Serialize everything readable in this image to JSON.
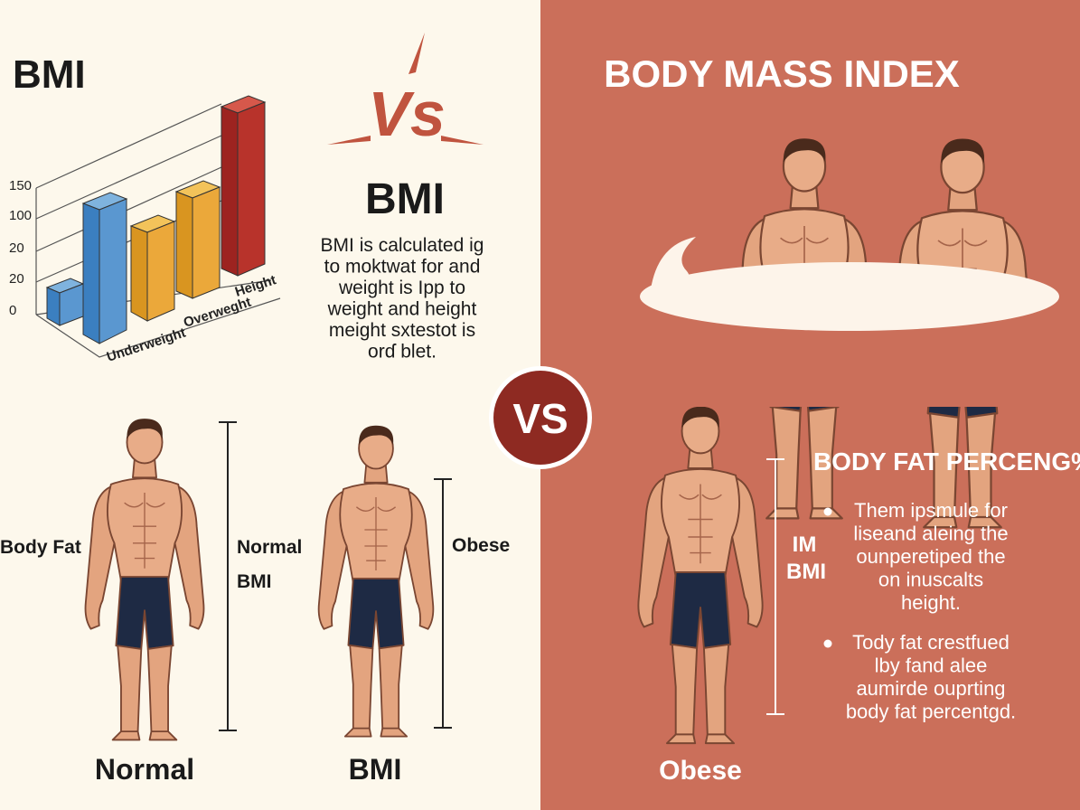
{
  "left": {
    "title": "BMI",
    "chart": {
      "yticks": [
        "150",
        "100",
        "20",
        "20",
        "0"
      ],
      "xlabels": [
        "Underweight",
        "Overweght",
        "Height"
      ]
    },
    "figures": {
      "side_label": "Body Fat",
      "normal_label": "Normal",
      "bmi_label": "BMI",
      "obese_label": "Obese",
      "caption_1": "Normal",
      "caption_2": "BMI"
    }
  },
  "center": {
    "vs_top": "Vs",
    "heading": "BMI",
    "paragraph": [
      "BMI is calculated ig",
      "to moktwat for and",
      "weight is Ipp to",
      "weight and height",
      "meight sxtestot is",
      "orɗ blet."
    ],
    "vs_circle": "VS"
  },
  "right": {
    "title": "BODY MASS INDEX",
    "side_label": [
      "IM",
      "BMI"
    ],
    "caption": "Obese",
    "section_title": "BODY FAT PERCENG%",
    "bullets": [
      [
        "Them ipsmule for",
        "liseand aleing the",
        "ounperetiped the",
        "on inuscalts",
        "height."
      ],
      [
        "Tody fat crestfued",
        "lby fand alee",
        "aumirde ouprting",
        "body fat percentgd."
      ]
    ]
  }
}
